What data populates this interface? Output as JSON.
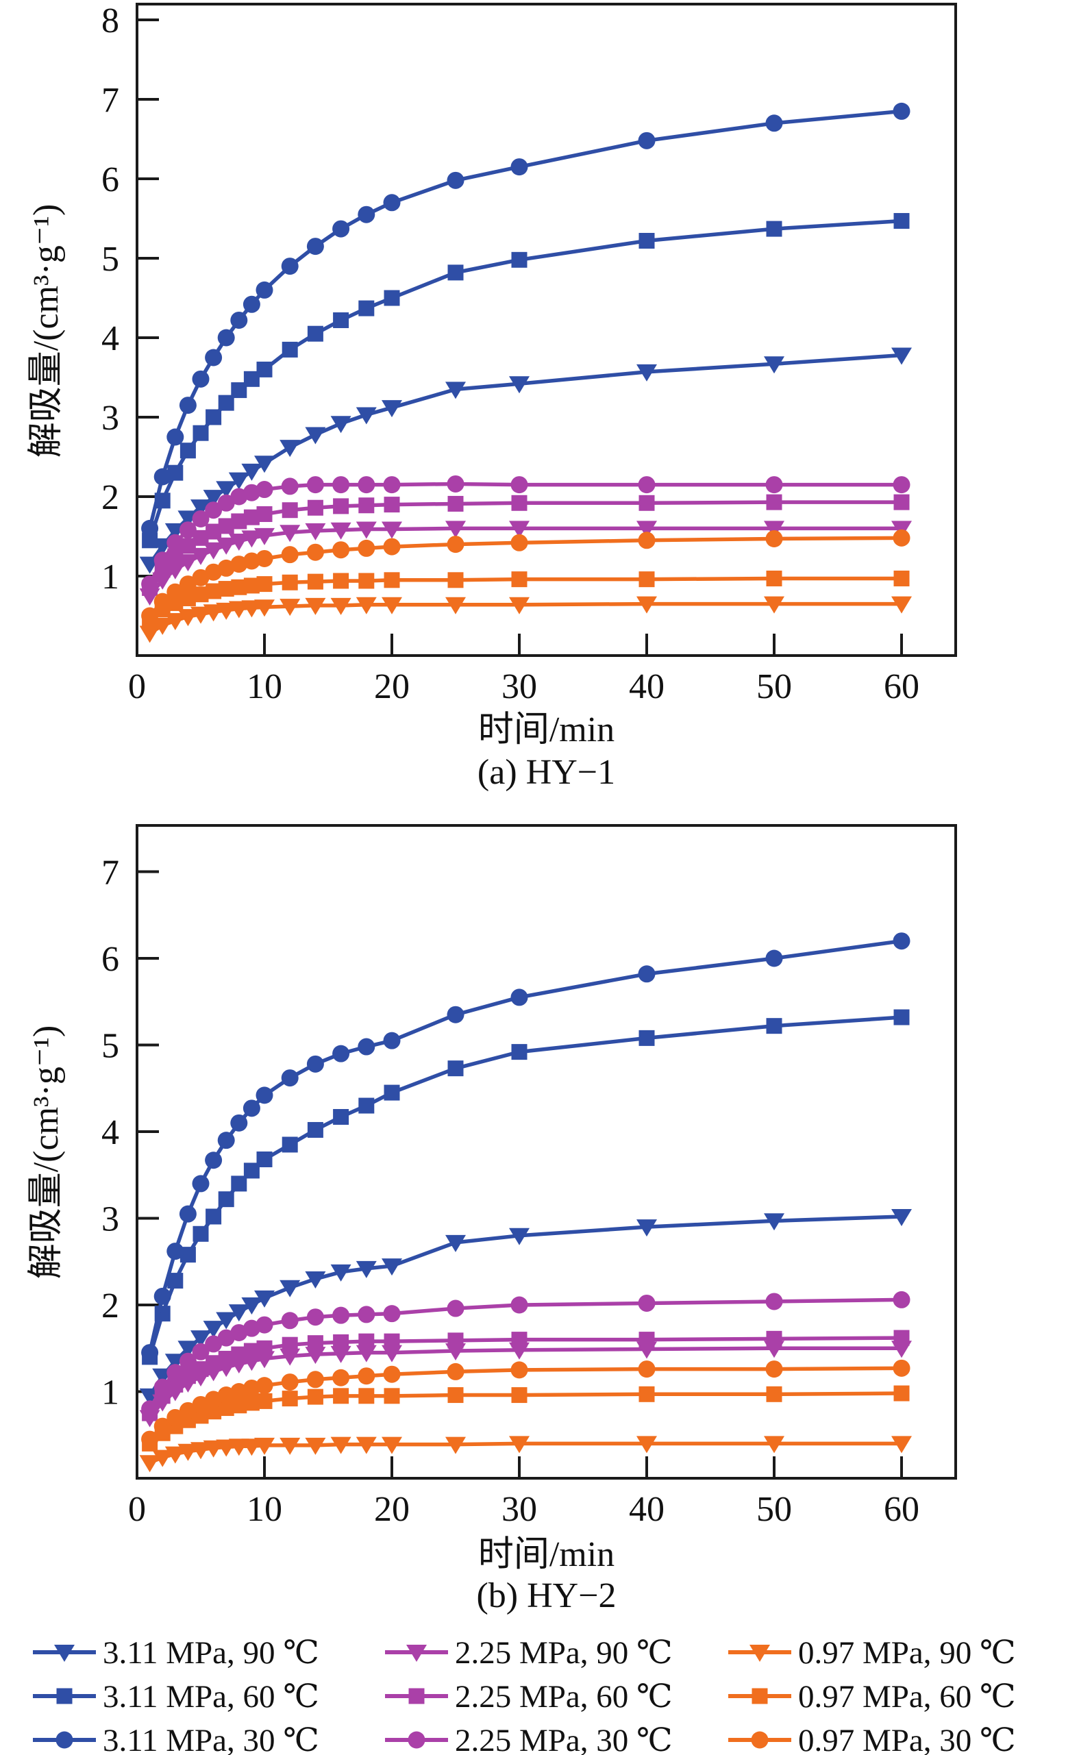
{
  "figure": {
    "background": "#ffffff",
    "y_axis_label": "解吸量/(cm³·g⁻¹)",
    "x_axis_label": "时间/min",
    "caption_a": "(a) HY−1",
    "caption_b": "(b) HY−2"
  },
  "colors": {
    "blue": "#2F4EA6",
    "purple": "#AA40A8",
    "orange": "#F06E1E",
    "axis": "#1a1a1a"
  },
  "legend": {
    "items": [
      {
        "label": "3.11 MPa, 90 ℃",
        "color": "blue",
        "marker": "triangle"
      },
      {
        "label": "3.11 MPa, 60 ℃",
        "color": "blue",
        "marker": "square"
      },
      {
        "label": "3.11 MPa, 30 ℃",
        "color": "blue",
        "marker": "circle"
      },
      {
        "label": "2.25 MPa, 90 ℃",
        "color": "purple",
        "marker": "triangle"
      },
      {
        "label": "2.25 MPa, 60 ℃",
        "color": "purple",
        "marker": "square"
      },
      {
        "label": "2.25 MPa, 30 ℃",
        "color": "purple",
        "marker": "circle"
      },
      {
        "label": "0.97 MPa, 90 ℃",
        "color": "orange",
        "marker": "triangle"
      },
      {
        "label": "0.97 MPa, 60 ℃",
        "color": "orange",
        "marker": "square"
      },
      {
        "label": "0.97 MPa, 30 ℃",
        "color": "orange",
        "marker": "circle"
      }
    ]
  },
  "chart_data": [
    {
      "type": "line",
      "title": "(a) HY−1",
      "xlabel": "时间/min",
      "ylabel": "解吸量/(cm³·g⁻¹)",
      "xlim": [
        0,
        64.3
      ],
      "ylim": [
        0,
        8.2
      ],
      "x_ticks": [
        0,
        10,
        20,
        30,
        40,
        50,
        60
      ],
      "y_ticks": [
        1,
        2,
        3,
        4,
        5,
        6,
        7,
        8
      ],
      "grid": false,
      "x": [
        1,
        2,
        3,
        4,
        5,
        6,
        7,
        8,
        9,
        10,
        12,
        14,
        16,
        18,
        20,
        25,
        30,
        40,
        50,
        60
      ],
      "series": [
        {
          "name": "3.11 MPa, 90 ℃",
          "color": "blue",
          "marker": "triangle",
          "values": [
            1.15,
            1.38,
            1.57,
            1.73,
            1.87,
            1.99,
            2.1,
            2.21,
            2.32,
            2.42,
            2.62,
            2.78,
            2.92,
            3.03,
            3.12,
            3.35,
            3.42,
            3.57,
            3.67,
            3.78
          ]
        },
        {
          "name": "3.11 MPa, 60 ℃",
          "color": "blue",
          "marker": "square",
          "values": [
            1.45,
            1.95,
            2.3,
            2.58,
            2.8,
            3.0,
            3.18,
            3.34,
            3.48,
            3.6,
            3.85,
            4.05,
            4.22,
            4.37,
            4.5,
            4.82,
            4.98,
            5.22,
            5.37,
            5.47
          ]
        },
        {
          "name": "3.11 MPa, 30 ℃",
          "color": "blue",
          "marker": "circle",
          "values": [
            1.6,
            2.25,
            2.75,
            3.15,
            3.48,
            3.75,
            4.0,
            4.22,
            4.42,
            4.6,
            4.9,
            5.15,
            5.37,
            5.55,
            5.7,
            5.98,
            6.15,
            6.48,
            6.7,
            6.85
          ]
        },
        {
          "name": "2.25 MPa, 90 ℃",
          "color": "purple",
          "marker": "triangle",
          "values": [
            0.75,
            0.95,
            1.08,
            1.18,
            1.26,
            1.33,
            1.39,
            1.44,
            1.48,
            1.51,
            1.55,
            1.57,
            1.58,
            1.59,
            1.59,
            1.6,
            1.6,
            1.6,
            1.6,
            1.6
          ]
        },
        {
          "name": "2.25 MPa, 60 ℃",
          "color": "purple",
          "marker": "square",
          "values": [
            0.85,
            1.08,
            1.25,
            1.38,
            1.48,
            1.56,
            1.63,
            1.69,
            1.74,
            1.78,
            1.83,
            1.86,
            1.88,
            1.89,
            1.9,
            1.91,
            1.92,
            1.92,
            1.93,
            1.93
          ]
        },
        {
          "name": "2.25 MPa, 30 ℃",
          "color": "purple",
          "marker": "circle",
          "values": [
            0.9,
            1.2,
            1.42,
            1.58,
            1.72,
            1.83,
            1.92,
            2.0,
            2.05,
            2.09,
            2.13,
            2.15,
            2.15,
            2.15,
            2.15,
            2.16,
            2.15,
            2.15,
            2.15,
            2.15
          ]
        },
        {
          "name": "0.97 MPa, 90 ℃",
          "color": "orange",
          "marker": "triangle",
          "values": [
            0.28,
            0.38,
            0.44,
            0.49,
            0.52,
            0.55,
            0.57,
            0.59,
            0.6,
            0.61,
            0.62,
            0.63,
            0.63,
            0.64,
            0.64,
            0.64,
            0.64,
            0.65,
            0.65,
            0.65
          ]
        },
        {
          "name": "0.97 MPa, 60 ℃",
          "color": "orange",
          "marker": "square",
          "values": [
            0.45,
            0.58,
            0.66,
            0.72,
            0.77,
            0.81,
            0.84,
            0.86,
            0.88,
            0.9,
            0.92,
            0.93,
            0.94,
            0.94,
            0.95,
            0.95,
            0.96,
            0.96,
            0.97,
            0.97
          ]
        },
        {
          "name": "0.97 MPa, 30 ℃",
          "color": "orange",
          "marker": "circle",
          "values": [
            0.5,
            0.68,
            0.8,
            0.9,
            0.98,
            1.05,
            1.1,
            1.15,
            1.19,
            1.22,
            1.27,
            1.3,
            1.33,
            1.35,
            1.37,
            1.4,
            1.42,
            1.45,
            1.47,
            1.48
          ]
        }
      ]
    },
    {
      "type": "line",
      "title": "(b) HY−2",
      "xlabel": "时间/min",
      "ylabel": "解吸量/(cm³·g⁻¹)",
      "xlim": [
        0,
        64.3
      ],
      "ylim": [
        0,
        7.55
      ],
      "x_ticks": [
        0,
        10,
        20,
        30,
        40,
        50,
        60
      ],
      "y_ticks": [
        1,
        2,
        3,
        4,
        5,
        6,
        7
      ],
      "grid": false,
      "x": [
        1,
        2,
        3,
        4,
        5,
        6,
        7,
        8,
        9,
        10,
        12,
        14,
        16,
        18,
        20,
        25,
        30,
        40,
        50,
        60
      ],
      "series": [
        {
          "name": "3.11 MPa, 90 ℃",
          "color": "blue",
          "marker": "triangle",
          "values": [
            0.95,
            1.18,
            1.35,
            1.5,
            1.62,
            1.73,
            1.83,
            1.92,
            2.0,
            2.08,
            2.2,
            2.3,
            2.38,
            2.42,
            2.45,
            2.72,
            2.8,
            2.9,
            2.97,
            3.02
          ]
        },
        {
          "name": "3.11 MPa, 60 ℃",
          "color": "blue",
          "marker": "square",
          "values": [
            1.4,
            1.9,
            2.28,
            2.58,
            2.82,
            3.02,
            3.22,
            3.4,
            3.55,
            3.68,
            3.85,
            4.02,
            4.17,
            4.3,
            4.45,
            4.73,
            4.92,
            5.08,
            5.22,
            5.32
          ]
        },
        {
          "name": "3.11 MPa, 30 ℃",
          "color": "blue",
          "marker": "circle",
          "values": [
            1.45,
            2.1,
            2.62,
            3.05,
            3.4,
            3.67,
            3.9,
            4.1,
            4.27,
            4.42,
            4.62,
            4.78,
            4.9,
            4.98,
            5.05,
            5.35,
            5.55,
            5.82,
            6.0,
            6.2
          ]
        },
        {
          "name": "2.25 MPa, 90 ℃",
          "color": "purple",
          "marker": "triangle",
          "values": [
            0.7,
            0.88,
            1.0,
            1.1,
            1.17,
            1.23,
            1.28,
            1.32,
            1.35,
            1.38,
            1.41,
            1.43,
            1.44,
            1.45,
            1.45,
            1.47,
            1.48,
            1.49,
            1.5,
            1.5
          ]
        },
        {
          "name": "2.25 MPa, 60 ℃",
          "color": "purple",
          "marker": "square",
          "values": [
            0.75,
            0.95,
            1.08,
            1.18,
            1.26,
            1.33,
            1.38,
            1.43,
            1.47,
            1.5,
            1.54,
            1.56,
            1.57,
            1.58,
            1.58,
            1.59,
            1.6,
            1.6,
            1.61,
            1.62
          ]
        },
        {
          "name": "2.25 MPa, 30 ℃",
          "color": "purple",
          "marker": "circle",
          "values": [
            0.8,
            1.05,
            1.22,
            1.35,
            1.46,
            1.55,
            1.62,
            1.68,
            1.73,
            1.77,
            1.82,
            1.86,
            1.88,
            1.89,
            1.9,
            1.96,
            2.0,
            2.02,
            2.04,
            2.06
          ]
        },
        {
          "name": "0.97 MPa, 90 ℃",
          "color": "orange",
          "marker": "triangle",
          "values": [
            0.18,
            0.24,
            0.28,
            0.31,
            0.33,
            0.35,
            0.36,
            0.37,
            0.37,
            0.38,
            0.38,
            0.38,
            0.39,
            0.39,
            0.39,
            0.39,
            0.4,
            0.4,
            0.4,
            0.4
          ]
        },
        {
          "name": "0.97 MPa, 60 ℃",
          "color": "orange",
          "marker": "square",
          "values": [
            0.4,
            0.52,
            0.6,
            0.67,
            0.72,
            0.77,
            0.81,
            0.84,
            0.87,
            0.89,
            0.92,
            0.94,
            0.95,
            0.95,
            0.95,
            0.96,
            0.96,
            0.97,
            0.97,
            0.98
          ]
        },
        {
          "name": "0.97 MPa, 30 ℃",
          "color": "orange",
          "marker": "circle",
          "values": [
            0.45,
            0.6,
            0.7,
            0.78,
            0.85,
            0.91,
            0.96,
            1.0,
            1.04,
            1.07,
            1.11,
            1.14,
            1.16,
            1.18,
            1.2,
            1.23,
            1.25,
            1.26,
            1.26,
            1.27
          ]
        }
      ]
    }
  ]
}
